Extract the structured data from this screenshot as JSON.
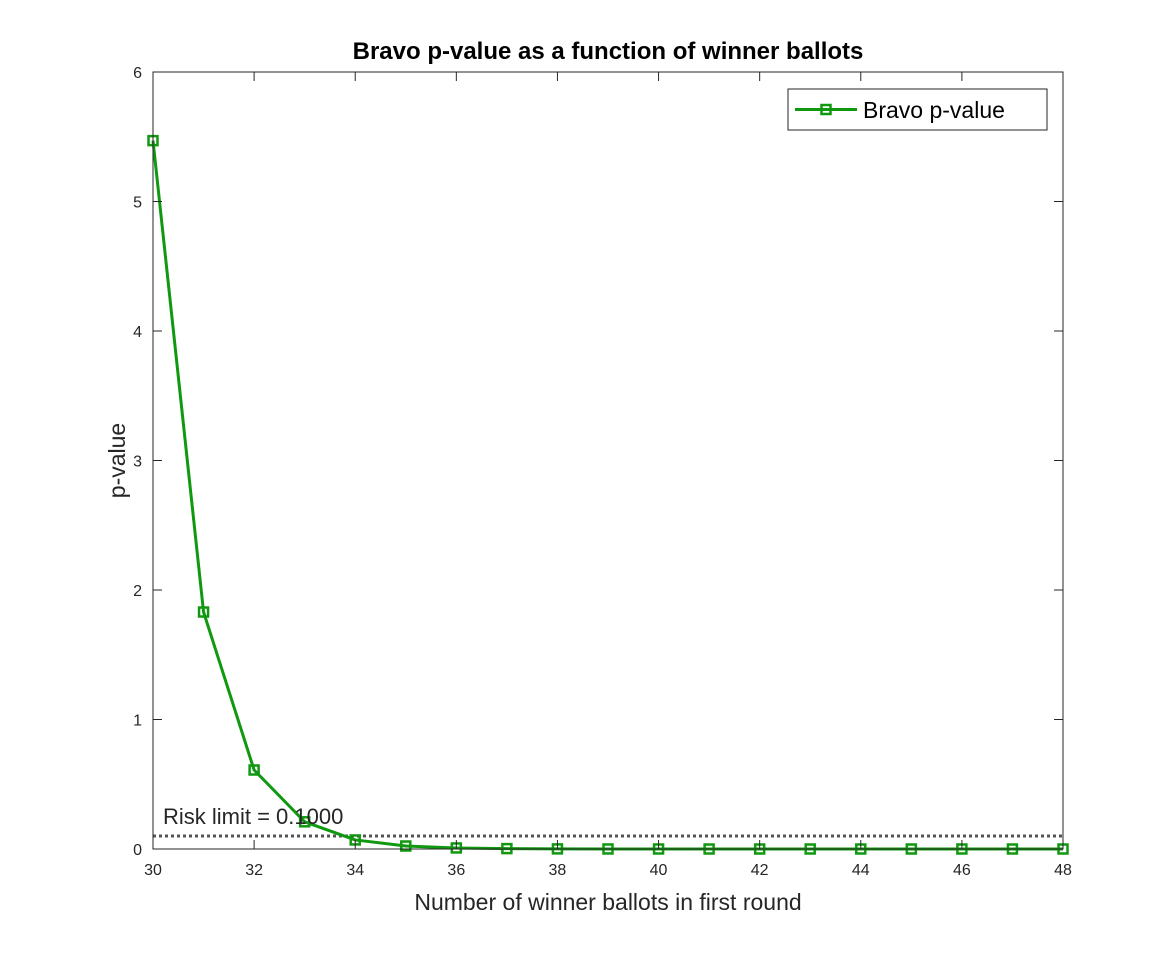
{
  "chart_data": {
    "type": "line",
    "title": "Bravo p-value as a function of winner ballots",
    "xlabel": "Number of winner ballots in first round",
    "ylabel": "p-value",
    "xlim": [
      30,
      48
    ],
    "ylim": [
      0,
      6
    ],
    "xticks": [
      "30",
      "32",
      "34",
      "36",
      "38",
      "40",
      "42",
      "44",
      "46",
      "48"
    ],
    "yticks": [
      "0",
      "1",
      "2",
      "3",
      "4",
      "5",
      "6"
    ],
    "grid": false,
    "legend_position": "top-right",
    "series": [
      {
        "name": "Bravo p-value",
        "color": "#109910",
        "marker": "square",
        "x": [
          30,
          31,
          32,
          33,
          34,
          35,
          36,
          37,
          38,
          39,
          40,
          41,
          42,
          43,
          44,
          45,
          46,
          47,
          48
        ],
        "y": [
          5.47,
          1.83,
          0.61,
          0.21,
          0.07,
          0.023,
          0.008,
          0.003,
          0.001,
          0.0003,
          0.0001,
          4e-05,
          1e-05,
          0,
          0,
          0,
          0,
          0,
          0
        ]
      }
    ],
    "reference_line": {
      "y": 0.1,
      "style": "dotted",
      "color": "#555555",
      "label": "Risk limit = 0.1000"
    }
  }
}
